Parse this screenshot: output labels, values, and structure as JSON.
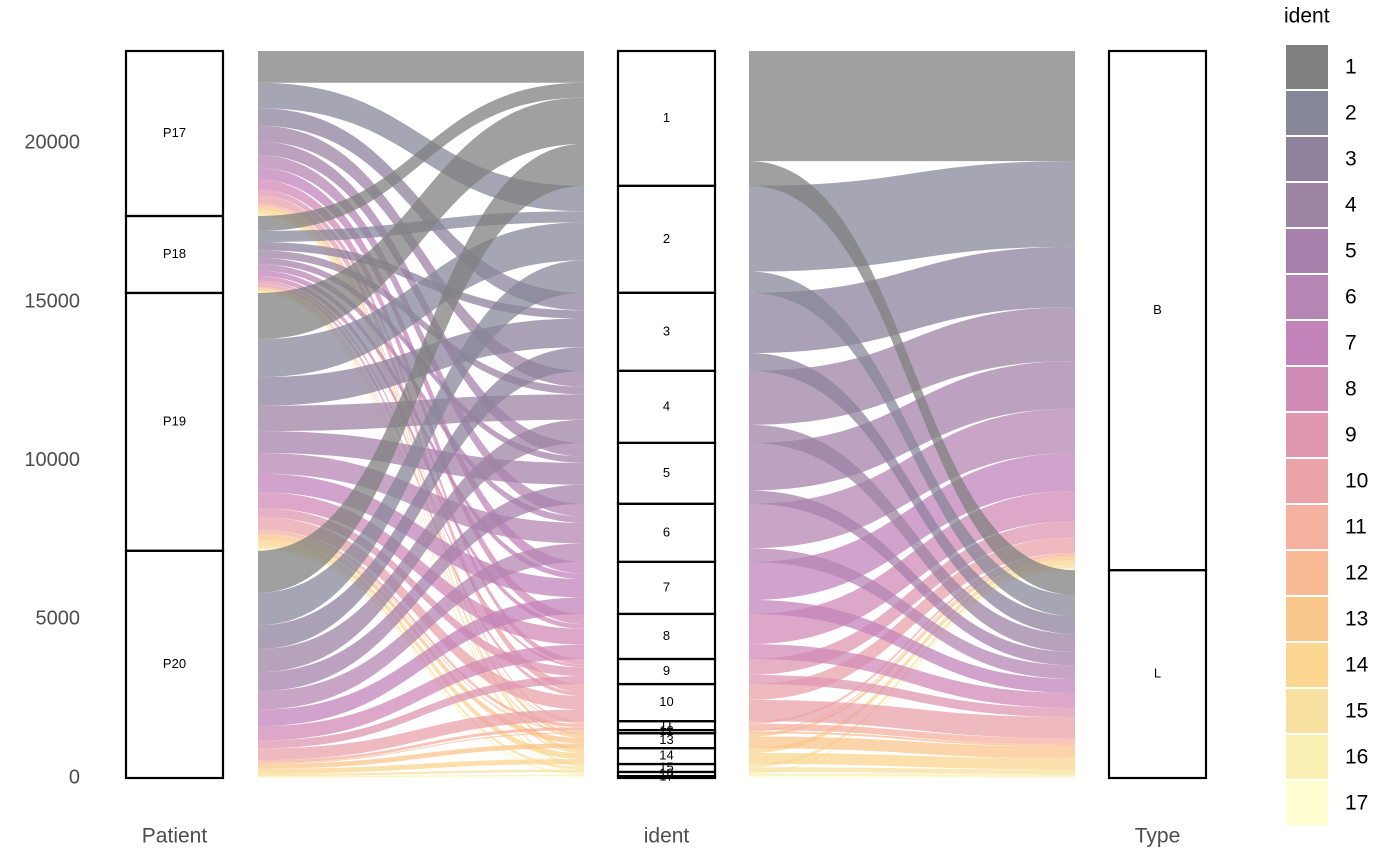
{
  "chart_data": {
    "type": "alluvial",
    "axes": [
      "Patient",
      "ident",
      "Type"
    ],
    "strata": [
      [
        "P17",
        "P18",
        "P19",
        "P20"
      ],
      [
        "1",
        "2",
        "3",
        "4",
        "5",
        "6",
        "7",
        "8",
        "9",
        "10",
        "11",
        "12",
        "13",
        "14",
        "15",
        "16",
        "17"
      ],
      [
        "B",
        "L"
      ]
    ],
    "flows": [
      [
        [
          1000,
          470,
          1455,
          1325
        ],
        [
          800,
          350,
          1200,
          1020
        ],
        [
          550,
          260,
          900,
          750
        ],
        [
          500,
          240,
          800,
          730
        ],
        [
          430,
          200,
          690,
          600
        ],
        [
          400,
          200,
          650,
          580
        ],
        [
          370,
          170,
          580,
          520
        ],
        [
          320,
          150,
          500,
          450
        ],
        [
          180,
          80,
          280,
          250
        ],
        [
          260,
          120,
          420,
          370
        ],
        [
          60,
          30,
          100,
          90
        ],
        [
          20,
          10,
          40,
          30
        ],
        [
          100,
          50,
          170,
          150
        ],
        [
          110,
          50,
          180,
          160
        ],
        [
          60,
          25,
          90,
          75
        ],
        [
          30,
          15,
          45,
          40
        ],
        [
          10,
          5,
          25,
          20
        ]
      ],
      [
        [
          3470,
          780
        ],
        [
          2700,
          670
        ],
        [
          1900,
          560
        ],
        [
          1700,
          570
        ],
        [
          1500,
          420
        ],
        [
          1400,
          430
        ],
        [
          1200,
          440
        ],
        [
          950,
          470
        ],
        [
          500,
          290
        ],
        [
          500,
          670
        ],
        [
          80,
          200
        ],
        [
          40,
          60
        ],
        [
          100,
          370
        ],
        [
          150,
          350
        ],
        [
          100,
          150
        ],
        [
          50,
          80
        ],
        [
          20,
          40
        ]
      ]
    ],
    "colors": [
      "#808080",
      "#87879a",
      "#8e819e",
      "#9d84a4",
      "#a781ab",
      "#b585b3",
      "#c183ba",
      "#d08ab6",
      "#de96b1",
      "#eaa3a9",
      "#f5b0a0",
      "#f8bb96",
      "#f9c68c",
      "#fad690",
      "#f8e0a0",
      "#faf0b4",
      "#fefed0"
    ],
    "ylim": [
      0,
      22910
    ],
    "yticks": [
      0,
      5000,
      10000,
      15000,
      20000
    ]
  }
}
